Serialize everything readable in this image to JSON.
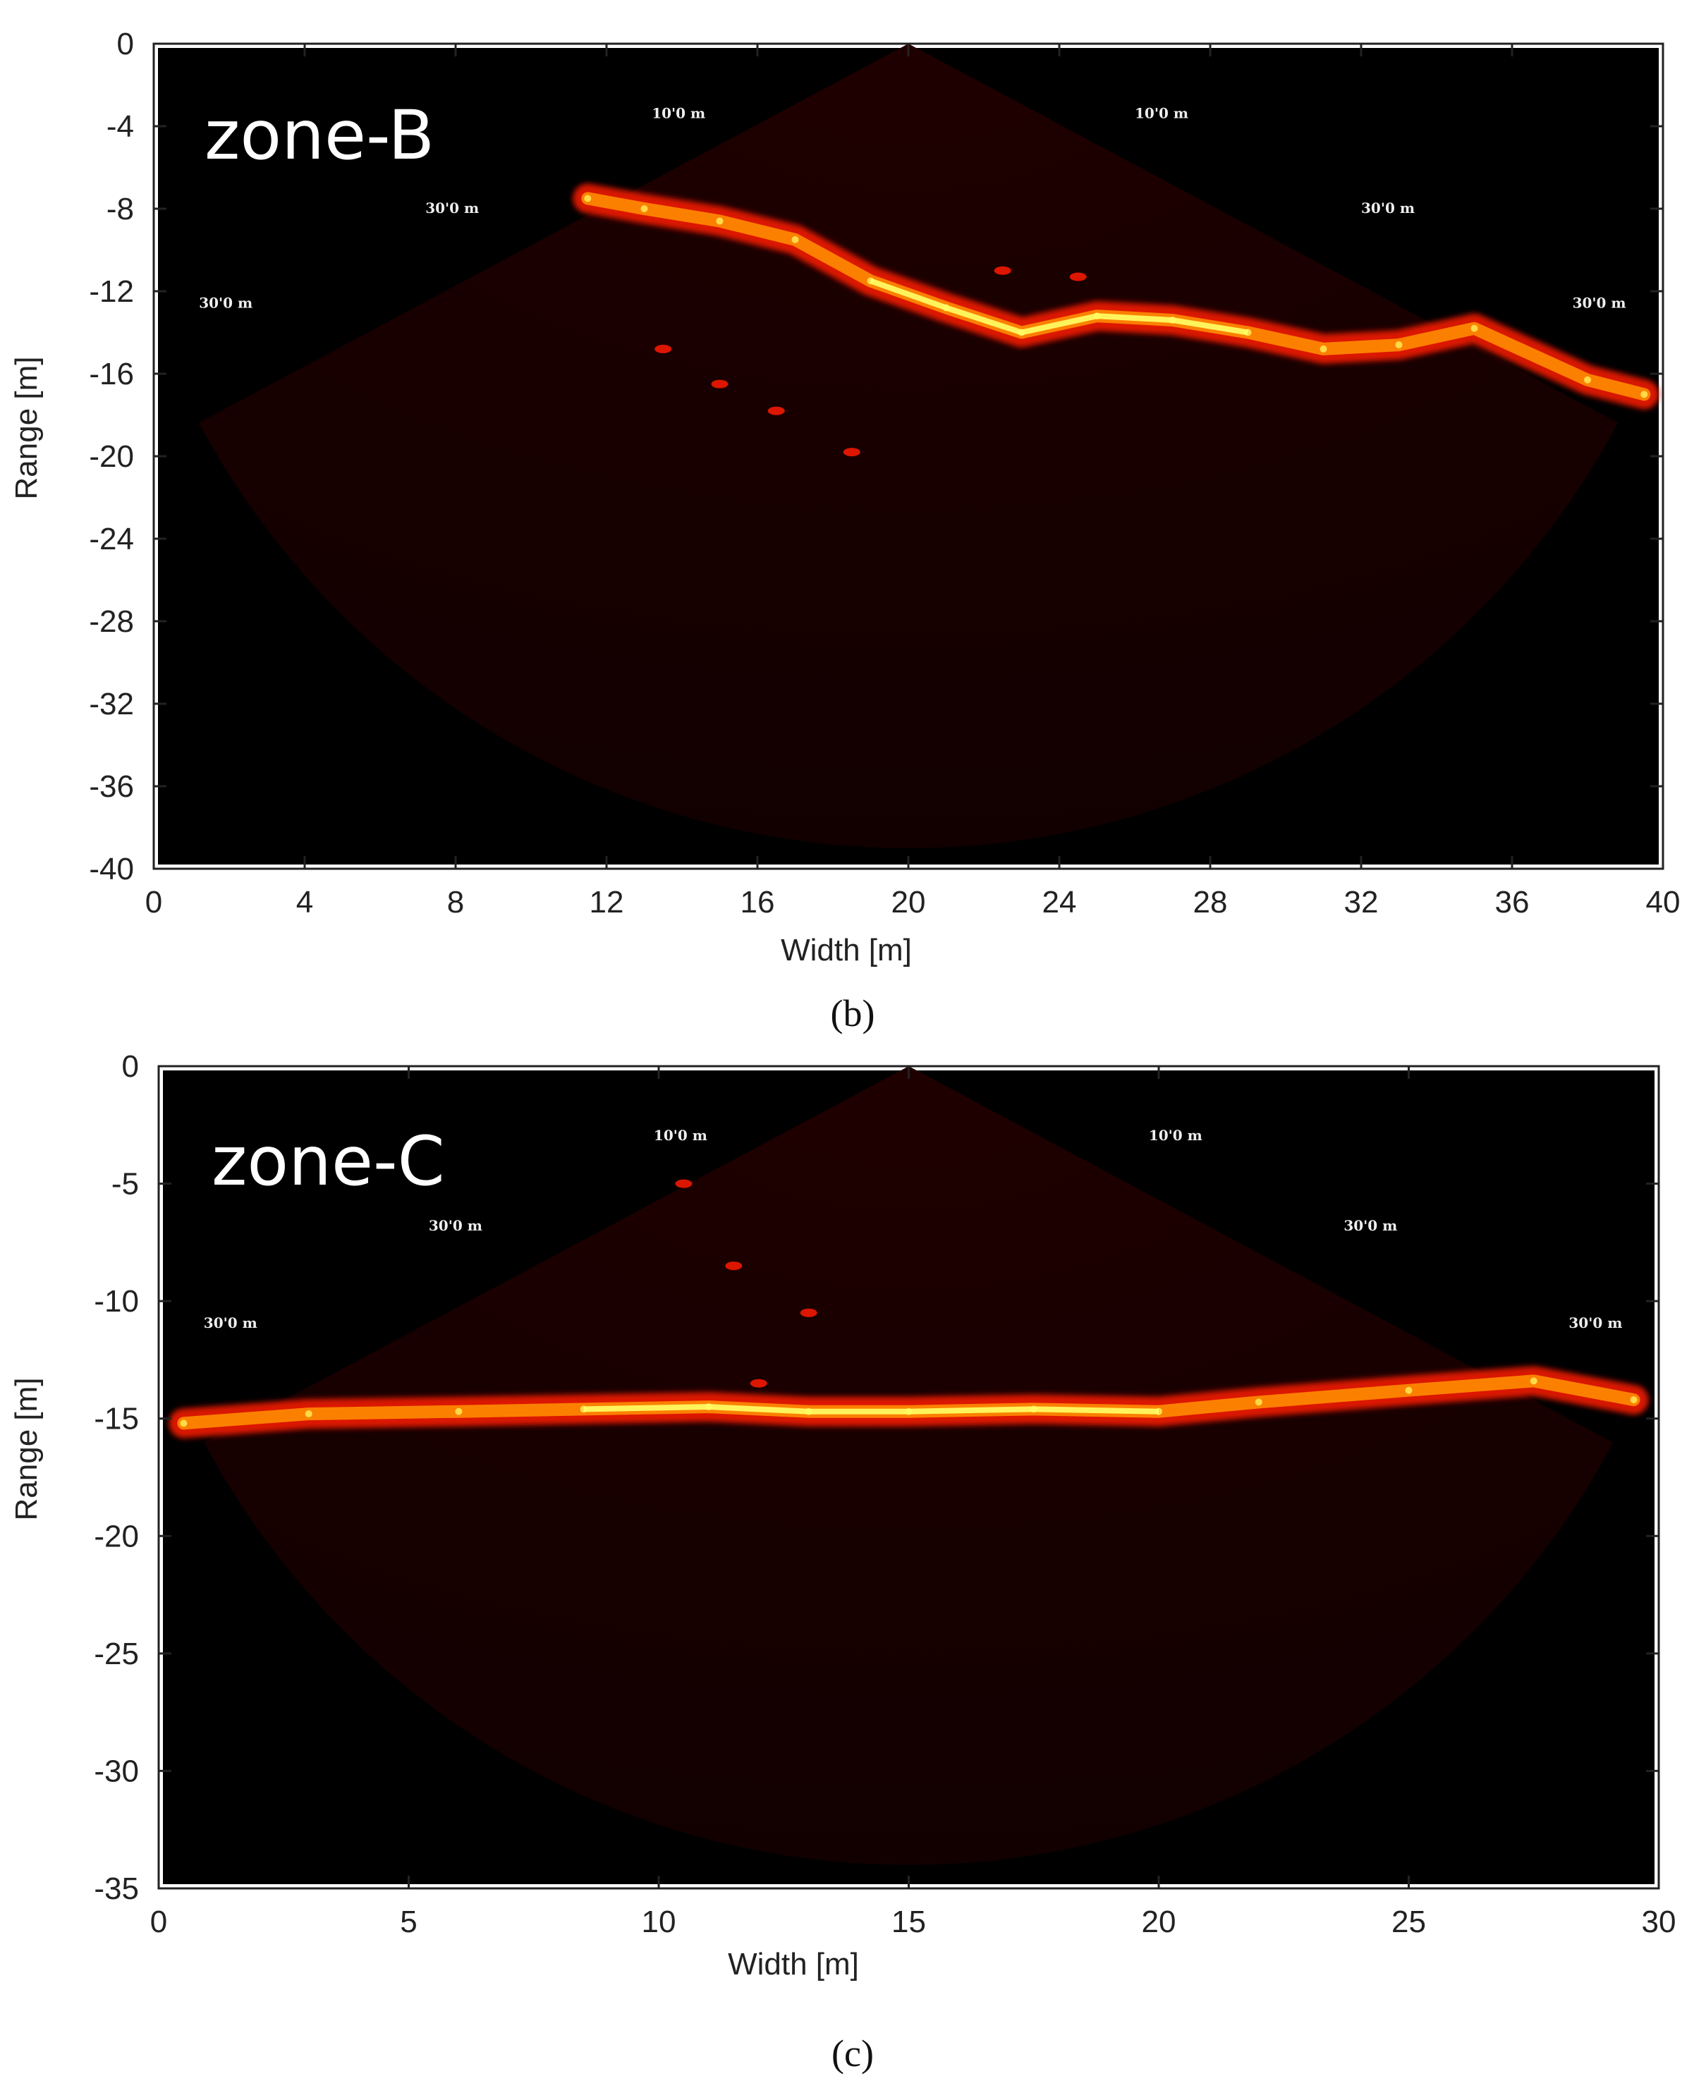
{
  "panels": [
    {
      "tag": "(b)",
      "zone_label": "zone-B",
      "range_markers": [
        "10'0 m",
        "10'0 m",
        "30'0 m",
        "30'0 m",
        "30'0 m",
        "30'0 m"
      ]
    },
    {
      "tag": "(c)",
      "zone_label": "zone-C",
      "range_markers": [
        "10'0 m",
        "10'0 m",
        "30'0 m",
        "30'0 m",
        "30'0 m",
        "30'0 m"
      ]
    }
  ],
  "colors": {
    "background": "#000000",
    "sector": "#1a0000",
    "echo_low": "#ff1a00",
    "echo_mid": "#ff8c00",
    "echo_high": "#ffff66"
  },
  "chart_data": [
    {
      "type": "heatmap",
      "title": "zone-B",
      "xlabel": "Width [m]",
      "ylabel": "Range [m]",
      "xlim": [
        0,
        40
      ],
      "ylim": [
        -40,
        0
      ],
      "x_ticks": [
        "0",
        "4",
        "8",
        "12",
        "16",
        "20",
        "24",
        "28",
        "32",
        "36",
        "40"
      ],
      "y_ticks": [
        "0",
        "-4",
        "-8",
        "-12",
        "-16",
        "-20",
        "-24",
        "-28",
        "-32",
        "-36",
        "-40"
      ],
      "colormap": "hot",
      "sonar_apex": [
        20,
        0
      ],
      "sonar_max_range": 39,
      "echo_profile": [
        {
          "x": 11.5,
          "y": -7.5
        },
        {
          "x": 13,
          "y": -8.0
        },
        {
          "x": 15,
          "y": -8.6
        },
        {
          "x": 17,
          "y": -9.5
        },
        {
          "x": 19,
          "y": -11.5
        },
        {
          "x": 21,
          "y": -12.8
        },
        {
          "x": 23,
          "y": -14.0
        },
        {
          "x": 25,
          "y": -13.2
        },
        {
          "x": 27,
          "y": -13.4
        },
        {
          "x": 29,
          "y": -14.0
        },
        {
          "x": 31,
          "y": -14.8
        },
        {
          "x": 33,
          "y": -14.6
        },
        {
          "x": 35,
          "y": -13.8
        },
        {
          "x": 38,
          "y": -16.3
        },
        {
          "x": 39.5,
          "y": -17.0
        }
      ],
      "secondary_echoes": [
        {
          "x": 13.5,
          "y": -14.8
        },
        {
          "x": 15,
          "y": -16.5
        },
        {
          "x": 16.5,
          "y": -17.8
        },
        {
          "x": 18.5,
          "y": -19.8
        },
        {
          "x": 22.5,
          "y": -11.0
        },
        {
          "x": 24.5,
          "y": -11.3
        }
      ]
    },
    {
      "type": "heatmap",
      "title": "zone-C",
      "xlabel": "Width [m]",
      "ylabel": "Range [m]",
      "xlim": [
        0,
        30
      ],
      "ylim": [
        -35,
        0
      ],
      "x_ticks": [
        "0",
        "5",
        "10",
        "15",
        "20",
        "25",
        "30"
      ],
      "y_ticks": [
        "0",
        "-5",
        "-10",
        "-15",
        "-20",
        "-25",
        "-30",
        "-35"
      ],
      "colormap": "hot",
      "sonar_apex": [
        15,
        0
      ],
      "sonar_max_range": 34,
      "echo_profile": [
        {
          "x": 0.5,
          "y": -15.2
        },
        {
          "x": 3,
          "y": -14.8
        },
        {
          "x": 6,
          "y": -14.7
        },
        {
          "x": 8.5,
          "y": -14.6
        },
        {
          "x": 11,
          "y": -14.5
        },
        {
          "x": 13,
          "y": -14.7
        },
        {
          "x": 15,
          "y": -14.7
        },
        {
          "x": 17.5,
          "y": -14.6
        },
        {
          "x": 20,
          "y": -14.7
        },
        {
          "x": 22,
          "y": -14.3
        },
        {
          "x": 25,
          "y": -13.8
        },
        {
          "x": 27.5,
          "y": -13.4
        },
        {
          "x": 29.5,
          "y": -14.2
        }
      ],
      "secondary_echoes": [
        {
          "x": 10.5,
          "y": -5.0
        },
        {
          "x": 11.5,
          "y": -8.5
        },
        {
          "x": 13,
          "y": -10.5
        },
        {
          "x": 12,
          "y": -13.5
        }
      ]
    }
  ]
}
